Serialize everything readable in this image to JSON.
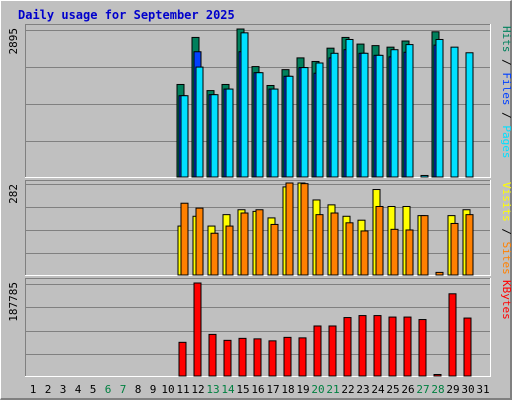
{
  "chart_data": {
    "type": "bar",
    "title": "Daily usage for September 2025",
    "colors": {
      "background": "#c0c0c0",
      "hits": "#00805c",
      "files": "#0040ff",
      "pages": "#00e0ff",
      "visits": "#ffff00",
      "sites": "#ff8000",
      "kbytes": "#ff0000",
      "title": "#0000cc",
      "weekend_label": "#008040"
    },
    "x": {
      "categories": [
        "1",
        "2",
        "3",
        "4",
        "5",
        "6",
        "7",
        "8",
        "9",
        "10",
        "11",
        "12",
        "13",
        "14",
        "15",
        "16",
        "17",
        "18",
        "19",
        "20",
        "21",
        "22",
        "23",
        "24",
        "25",
        "26",
        "27",
        "28",
        "29",
        "30",
        "31"
      ],
      "weekend_days": [
        6,
        7,
        13,
        14,
        20,
        21,
        27,
        28
      ]
    },
    "panels": [
      {
        "id": "hits-files-pages",
        "ymax_label": "2895",
        "ymax": 2895,
        "legend": [
          {
            "text": "Pages",
            "color": "#00e0ff"
          },
          {
            "text": " / ",
            "color": "#000000"
          },
          {
            "text": "Files",
            "color": "#0040ff"
          },
          {
            "text": " / ",
            "color": "#000000"
          },
          {
            "text": "Hits",
            "color": "#00805c"
          }
        ],
        "series": [
          {
            "name": "Hits",
            "color": "#00805c",
            "values": [
              0,
              0,
              0,
              0,
              0,
              0,
              0,
              0,
              0,
              0,
              1810,
              2730,
              1690,
              1810,
              2895,
              2160,
              1790,
              2100,
              2330,
              2260,
              2520,
              2730,
              2600,
              2570,
              2540,
              2660,
              0,
              2840,
              0,
              0,
              0
            ]
          },
          {
            "name": "Files",
            "color": "#0040ff",
            "values": [
              0,
              0,
              0,
              0,
              0,
              0,
              0,
              0,
              0,
              0,
              1590,
              2450,
              1610,
              1720,
              2450,
              2040,
              1720,
              1970,
              2140,
              2030,
              2330,
              2490,
              2420,
              2380,
              2350,
              2440,
              0,
              2580,
              0,
              0,
              0
            ]
          },
          {
            "name": "Pages",
            "color": "#00e0ff",
            "values": [
              0,
              0,
              0,
              0,
              0,
              0,
              0,
              0,
              0,
              0,
              1590,
              2150,
              1610,
              1720,
              2820,
              2040,
              1720,
              1970,
              2140,
              2230,
              2420,
              2690,
              2420,
              2380,
              2490,
              2590,
              30,
              2690,
              2540,
              2430,
              0
            ]
          }
        ]
      },
      {
        "id": "visits-sites",
        "ymax_label": "282",
        "ymax": 282,
        "legend": [
          {
            "text": "Sites",
            "color": "#ff8000"
          },
          {
            "text": " / ",
            "color": "#000000"
          },
          {
            "text": "Visits",
            "color": "#ffff00"
          }
        ],
        "series": [
          {
            "name": "Visits",
            "color": "#ffff00",
            "values": [
              0,
              0,
              0,
              0,
              0,
              0,
              0,
              0,
              0,
              0,
              150,
              180,
              150,
              185,
              200,
              195,
              175,
              270,
              282,
              230,
              215,
              180,
              168,
              262,
              210,
              210,
              182,
              0,
              182,
              200,
              0
            ]
          },
          {
            "name": "Sites",
            "color": "#ff8000",
            "values": [
              0,
              0,
              0,
              0,
              0,
              0,
              0,
              0,
              0,
              0,
              220,
              205,
              128,
              150,
              190,
              200,
              155,
              282,
              280,
              185,
              190,
              160,
              135,
              210,
              140,
              138,
              182,
              8,
              158,
              185,
              0
            ]
          }
        ]
      },
      {
        "id": "kbytes",
        "ymax_label": "187785",
        "ymax": 187785,
        "legend": [
          {
            "text": "KBytes",
            "color": "#ff0000"
          }
        ],
        "series": [
          {
            "name": "KBytes",
            "color": "#ff0000",
            "values": [
              0,
              0,
              0,
              0,
              0,
              0,
              0,
              0,
              0,
              0,
              68000,
              187785,
              84000,
              72000,
              76000,
              75000,
              71000,
              78000,
              77000,
              101000,
              101000,
              118000,
              122000,
              122000,
              119000,
              119000,
              114000,
              2500,
              166000,
              117000,
              0
            ]
          }
        ]
      }
    ]
  }
}
